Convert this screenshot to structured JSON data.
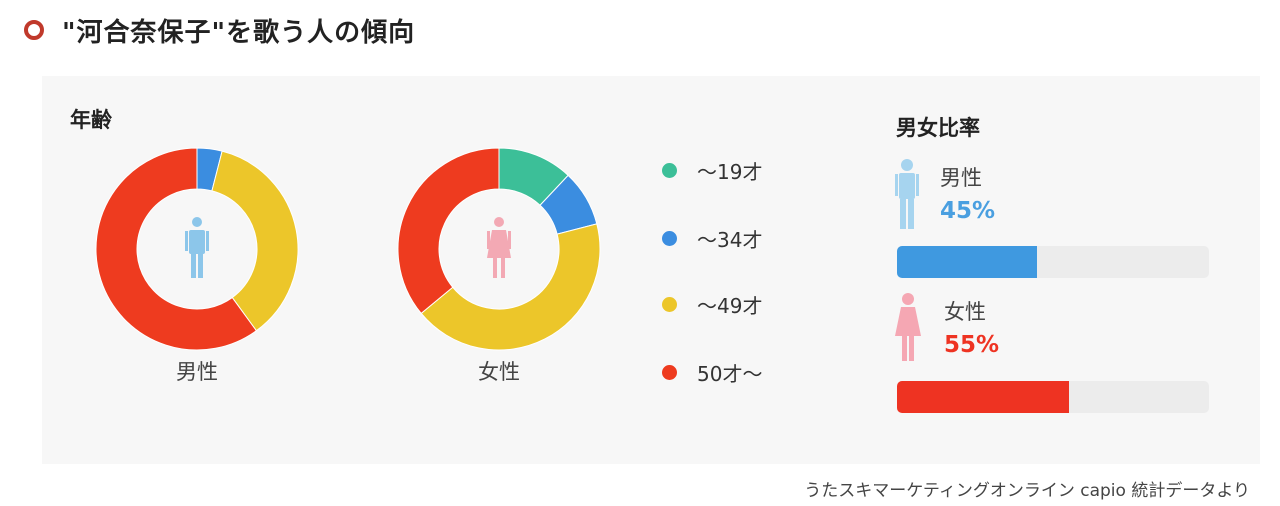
{
  "title": "\"河合奈保子\"を歌う人の傾向",
  "age_section": {
    "heading": "年齢",
    "male_label": "男性",
    "female_label": "女性"
  },
  "ratio_section": {
    "heading": "男女比率",
    "male": {
      "label": "男性",
      "percent_text": "45%",
      "value": 45,
      "color": "#3f99e0"
    },
    "female": {
      "label": "女性",
      "percent_text": "55%",
      "value": 55,
      "color": "#ee3322"
    }
  },
  "legend": [
    {
      "label": "～19才",
      "color": "#3cbf98"
    },
    {
      "label": "～34才",
      "color": "#3b8de0"
    },
    {
      "label": "～49才",
      "color": "#ecc62a"
    },
    {
      "label": "50才～",
      "color": "#ee3b1f"
    }
  ],
  "source_text": "うたスキマーケティングオンライン capio 統計データより",
  "chart_data": [
    {
      "type": "pie",
      "title": "男性",
      "categories": [
        "～19才",
        "～34才",
        "～49才",
        "50才～"
      ],
      "values": [
        0,
        4,
        36,
        60
      ],
      "colors": [
        "#3cbf98",
        "#3b8de0",
        "#ecc62a",
        "#ee3b1f"
      ],
      "donut": true
    },
    {
      "type": "pie",
      "title": "女性",
      "categories": [
        "～19才",
        "～34才",
        "～49才",
        "50才～"
      ],
      "values": [
        12,
        9,
        43,
        36
      ],
      "colors": [
        "#3cbf98",
        "#3b8de0",
        "#ecc62a",
        "#ee3b1f"
      ],
      "donut": true
    },
    {
      "type": "bar",
      "title": "男女比率",
      "categories": [
        "男性",
        "女性"
      ],
      "values": [
        45,
        55
      ],
      "colors": [
        "#3f99e0",
        "#ee3322"
      ],
      "ylim": [
        0,
        100
      ]
    }
  ]
}
